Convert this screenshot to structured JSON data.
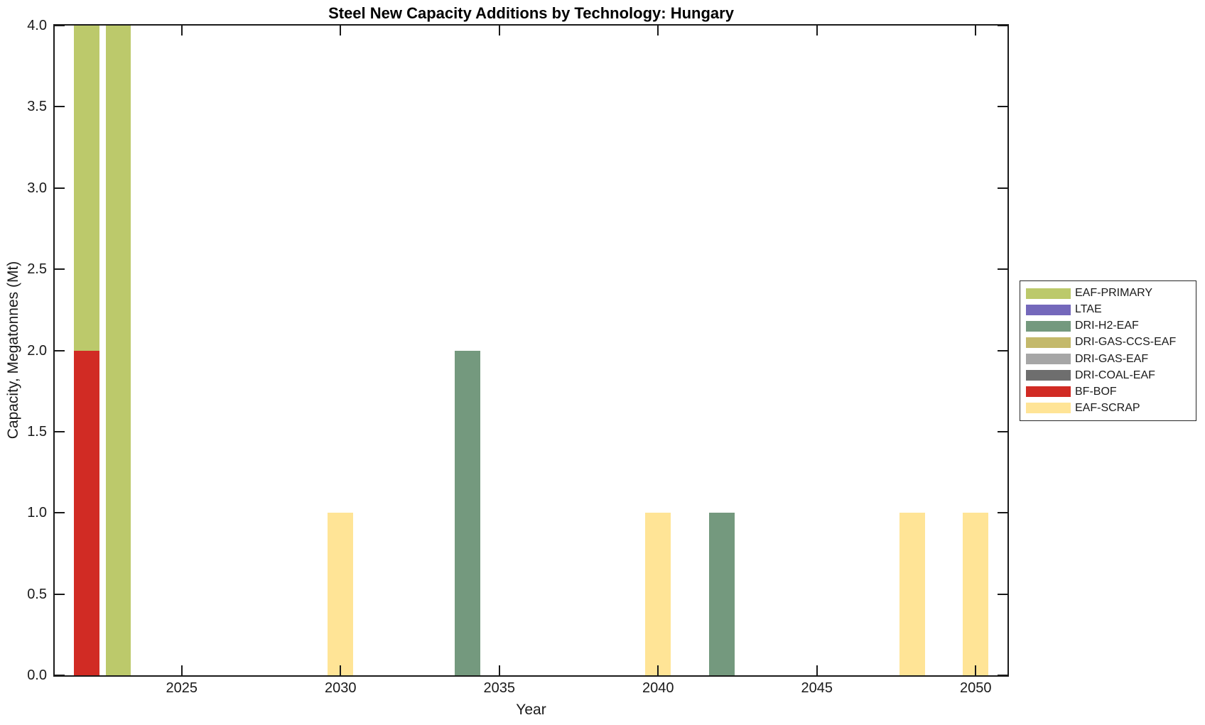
{
  "chart_data": {
    "type": "bar",
    "stacked": true,
    "title": "Steel New Capacity Additions by Technology: Hungary",
    "xlabel": "Year",
    "ylabel": "Capacity, Megatonnes (Mt)",
    "xlim": [
      2021,
      2051
    ],
    "ylim": [
      0,
      4
    ],
    "xticks": [
      2025,
      2030,
      2035,
      2040,
      2045,
      2050
    ],
    "xtick_labels": [
      "2025",
      "2030",
      "2035",
      "2040",
      "2045",
      "2050"
    ],
    "yticks": [
      0,
      0.5,
      1,
      1.5,
      2,
      2.5,
      3,
      3.5,
      4
    ],
    "ytick_labels": [
      "0.0",
      "0.5",
      "1.0",
      "1.5",
      "2.0",
      "2.5",
      "3.0",
      "3.5",
      "4.0"
    ],
    "bar_width_years": 0.8,
    "grid": false,
    "legend_position": "right-outside",
    "background": "#ffffff",
    "axis_color": "#1a1a1a",
    "series_colors": {
      "EAF-PRIMARY": "#bcc96b",
      "LTAE": "#7468bb",
      "DRI-H2-EAF": "#74997e",
      "DRI-GAS-CCS-EAF": "#c4b96b",
      "DRI-GAS-EAF": "#a6a6a6",
      "DRI-COAL-EAF": "#6e6e6e",
      "BF-BOF": "#d12b24",
      "EAF-SCRAP": "#ffe496"
    },
    "legend_entries": [
      {
        "label": "EAF-PRIMARY",
        "color": "#bcc96b"
      },
      {
        "label": "LTAE",
        "color": "#7468bb"
      },
      {
        "label": "DRI-H2-EAF",
        "color": "#74997e"
      },
      {
        "label": "DRI-GAS-CCS-EAF",
        "color": "#c4b96b"
      },
      {
        "label": "DRI-GAS-EAF",
        "color": "#a6a6a6"
      },
      {
        "label": "DRI-COAL-EAF",
        "color": "#6e6e6e"
      },
      {
        "label": "BF-BOF",
        "color": "#d12b24"
      },
      {
        "label": "EAF-SCRAP",
        "color": "#ffe496"
      }
    ],
    "bars": [
      {
        "year": 2022,
        "segments": [
          {
            "series": "BF-BOF",
            "value": 2.0
          },
          {
            "series": "EAF-PRIMARY",
            "value": 2.0
          }
        ]
      },
      {
        "year": 2023,
        "segments": [
          {
            "series": "EAF-PRIMARY",
            "value": 4.0
          }
        ]
      },
      {
        "year": 2030,
        "segments": [
          {
            "series": "EAF-SCRAP",
            "value": 1.0
          }
        ]
      },
      {
        "year": 2034,
        "segments": [
          {
            "series": "DRI-H2-EAF",
            "value": 2.0
          }
        ]
      },
      {
        "year": 2040,
        "segments": [
          {
            "series": "EAF-SCRAP",
            "value": 1.0
          }
        ]
      },
      {
        "year": 2042,
        "segments": [
          {
            "series": "DRI-H2-EAF",
            "value": 1.0
          }
        ]
      },
      {
        "year": 2048,
        "segments": [
          {
            "series": "EAF-SCRAP",
            "value": 1.0
          }
        ]
      },
      {
        "year": 2050,
        "segments": [
          {
            "series": "EAF-SCRAP",
            "value": 1.0
          }
        ]
      }
    ]
  }
}
